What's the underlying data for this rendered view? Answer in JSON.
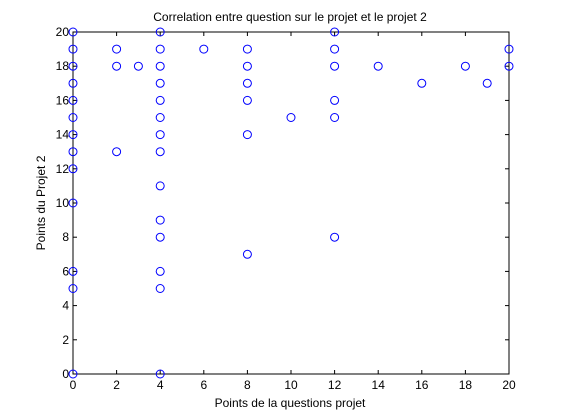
{
  "chart_data": {
    "type": "scatter",
    "title": "Correlation entre question sur le projet et le projet 2",
    "xlabel": "Points de la questions projet",
    "ylabel": "Points du Projet 2",
    "xlim": [
      0,
      20
    ],
    "ylim": [
      0,
      20
    ],
    "xticks": [
      0,
      2,
      4,
      6,
      8,
      10,
      12,
      14,
      16,
      18,
      20
    ],
    "yticks": [
      0,
      2,
      4,
      6,
      8,
      10,
      12,
      14,
      16,
      18,
      20
    ],
    "grid": false,
    "marker": "circle",
    "marker_color": "#0000ff",
    "points": [
      [
        0,
        0
      ],
      [
        0,
        5
      ],
      [
        0,
        6
      ],
      [
        0,
        10
      ],
      [
        0,
        12
      ],
      [
        0,
        13
      ],
      [
        0,
        14
      ],
      [
        0,
        15
      ],
      [
        0,
        16
      ],
      [
        0,
        17
      ],
      [
        0,
        18
      ],
      [
        0,
        19
      ],
      [
        0,
        20
      ],
      [
        2,
        13
      ],
      [
        2,
        18
      ],
      [
        2,
        19
      ],
      [
        3,
        18
      ],
      [
        4,
        0
      ],
      [
        4,
        5
      ],
      [
        4,
        6
      ],
      [
        4,
        8
      ],
      [
        4,
        9
      ],
      [
        4,
        11
      ],
      [
        4,
        13
      ],
      [
        4,
        14
      ],
      [
        4,
        15
      ],
      [
        4,
        16
      ],
      [
        4,
        17
      ],
      [
        4,
        18
      ],
      [
        4,
        19
      ],
      [
        4,
        20
      ],
      [
        6,
        19
      ],
      [
        8,
        7
      ],
      [
        8,
        14
      ],
      [
        8,
        16
      ],
      [
        8,
        17
      ],
      [
        8,
        18
      ],
      [
        8,
        19
      ],
      [
        10,
        15
      ],
      [
        12,
        8
      ],
      [
        12,
        15
      ],
      [
        12,
        16
      ],
      [
        12,
        18
      ],
      [
        12,
        19
      ],
      [
        12,
        20
      ],
      [
        14,
        18
      ],
      [
        16,
        17
      ],
      [
        18,
        18
      ],
      [
        19,
        17
      ],
      [
        20,
        18
      ],
      [
        20,
        19
      ]
    ]
  }
}
